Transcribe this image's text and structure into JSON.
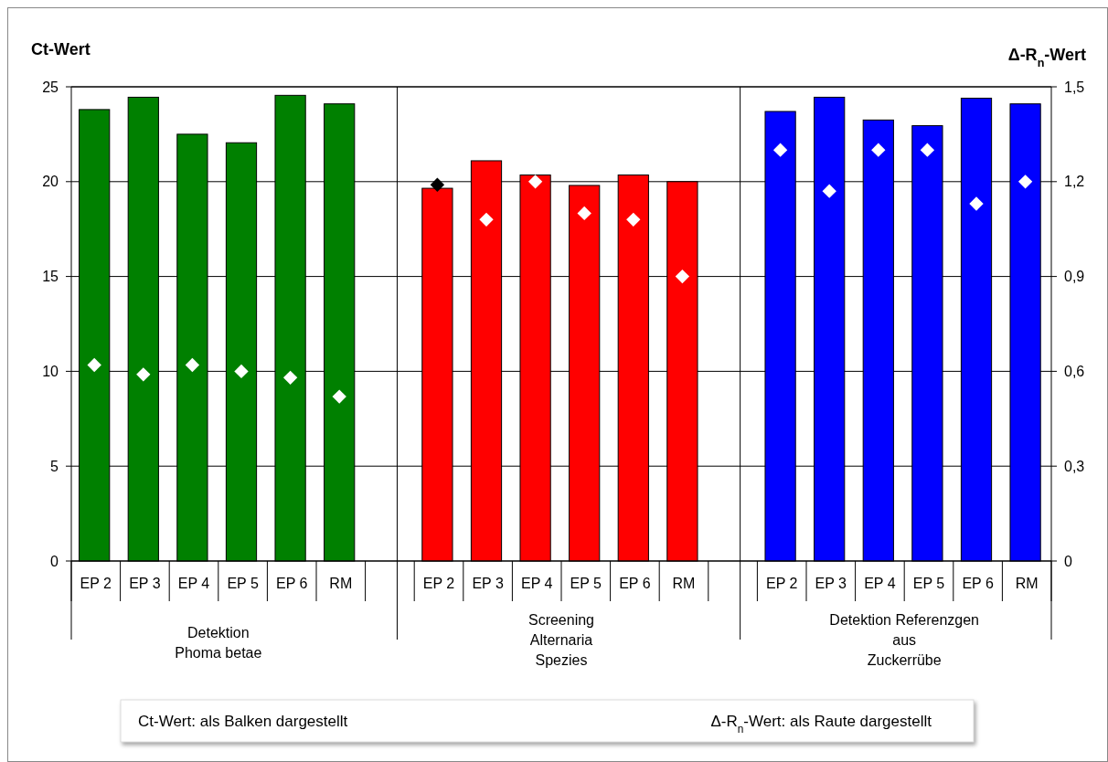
{
  "chart_data": {
    "type": "bar",
    "categories": [
      "EP 2",
      "EP 3",
      "EP 4",
      "EP 5",
      "EP 6",
      "RM",
      null,
      "EP 2",
      "EP 3",
      "EP 4",
      "EP 5",
      "EP 6",
      "RM",
      null,
      "EP 2",
      "EP 3",
      "EP 4",
      "EP 5",
      "EP 6",
      "RM"
    ],
    "series": [
      {
        "values": [
          23.8,
          24.45,
          22.5,
          22.05,
          24.55,
          24.1,
          null,
          19.65,
          21.1,
          20.35,
          19.8,
          20.35,
          20.0,
          null,
          23.7,
          24.45,
          23.25,
          22.95,
          24.4,
          24.1
        ],
        "colors": [
          "#008000",
          "#008000",
          "#008000",
          "#008000",
          "#008000",
          "#008000",
          null,
          "#ff0000",
          "#ff0000",
          "#ff0000",
          "#ff0000",
          "#ff0000",
          "#ff0000",
          null,
          "#0000ff",
          "#0000ff",
          "#0000ff",
          "#0000ff",
          "#0000ff",
          "#0000ff"
        ]
      },
      {
        "type": "scatter",
        "axis": "y2",
        "values": [
          0.62,
          0.59,
          0.62,
          0.6,
          0.58,
          0.52,
          null,
          1.19,
          1.08,
          1.2,
          1.1,
          1.08,
          0.9,
          null,
          1.3,
          1.17,
          1.3,
          1.3,
          1.13,
          1.2
        ],
        "colors": [
          "#ffffff",
          "#ffffff",
          "#ffffff",
          "#ffffff",
          "#ffffff",
          "#ffffff",
          null,
          "#000000",
          "#ffffff",
          "#ffffff",
          "#ffffff",
          "#ffffff",
          "#ffffff",
          null,
          "#ffffff",
          "#ffffff",
          "#ffffff",
          "#ffffff",
          "#ffffff",
          "#ffffff"
        ]
      }
    ],
    "ylabel": "Ct-Wert",
    "y2label": "Δ-R$_{n}$-Wert",
    "ylim": [
      0,
      25
    ],
    "yticks": [
      0,
      5,
      10,
      15,
      20,
      25
    ],
    "y2lim": [
      0,
      1.5
    ],
    "y2ticks": [
      0,
      {
        "value": 0.3,
        "label": "0,3"
      },
      {
        "value": 0.6,
        "label": "0,6"
      },
      {
        "value": 0.9,
        "label": "0,9"
      },
      {
        "value": 1.2,
        "label": "1,2"
      },
      {
        "value": 1.5,
        "label": "1,5"
      }
    ],
    "grid": "y",
    "marker": "diamond",
    "annotations": [
      "Detektion\nPhoma betae",
      "Screening\nAlternaria\nSpezies",
      "Detektion Referenzgen\naus\nZuckerrübe",
      "Ct-Wert: als Balken dargestellt",
      "Δ-R$_{n}$-Wert: als Raute dargestellt"
    ]
  }
}
